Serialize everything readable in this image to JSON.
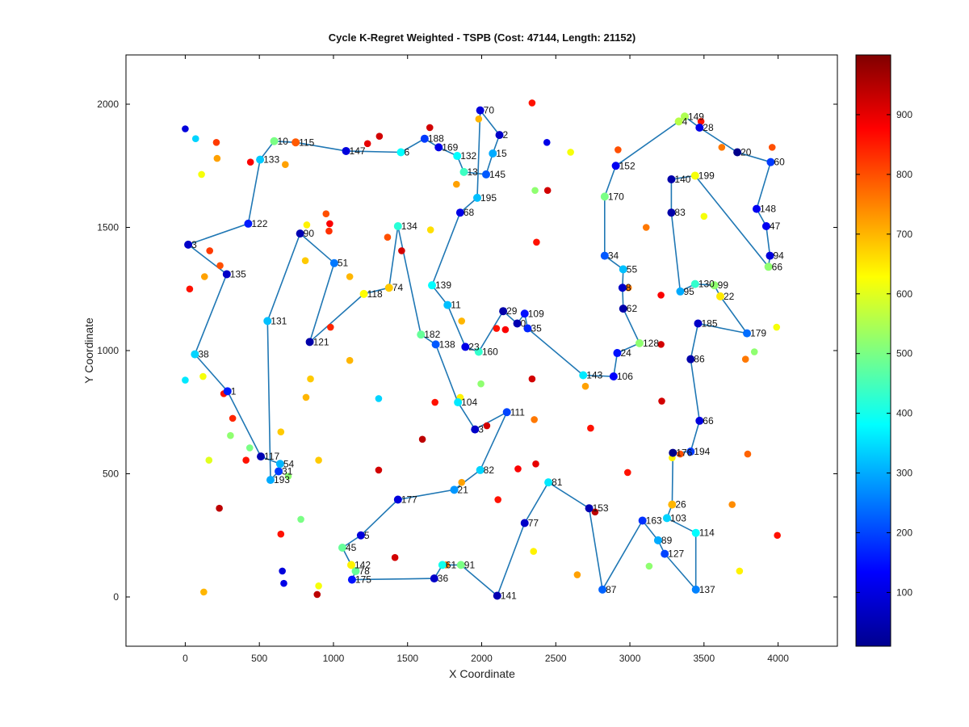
{
  "chart_data": {
    "type": "scatter",
    "title": "Cycle K-Regret Weighted - TSPB (Cost: 47144, Length: 21152)",
    "xlabel": "X Coordinate",
    "ylabel": "Y Coordinate",
    "xlim": [
      -400,
      4400
    ],
    "ylim": [
      -200,
      2200
    ],
    "xticks": [
      0,
      500,
      1000,
      1500,
      2000,
      2500,
      3000,
      3500,
      4000
    ],
    "yticks": [
      0,
      500,
      1000,
      1500,
      2000
    ],
    "grid": false,
    "legend": "none",
    "colorbar": {
      "colormap": "jet",
      "range": [
        10,
        1000
      ],
      "ticks": [
        100,
        200,
        300,
        400,
        500,
        600,
        700,
        800,
        900
      ]
    },
    "cycle_color": "#1f77b4",
    "tour_nodes": [
      {
        "id": 10,
        "x": 600,
        "y": 1850,
        "c": 500
      },
      {
        "id": 115,
        "x": 745,
        "y": 1845,
        "c": 790
      },
      {
        "id": 147,
        "x": 1085,
        "y": 1810,
        "c": 100
      },
      {
        "id": 6,
        "x": 1455,
        "y": 1805,
        "c": 380
      },
      {
        "id": 188,
        "x": 1615,
        "y": 1860,
        "c": 190
      },
      {
        "id": 169,
        "x": 1710,
        "y": 1825,
        "c": 110
      },
      {
        "id": 132,
        "x": 1835,
        "y": 1790,
        "c": 380
      },
      {
        "id": 13,
        "x": 1880,
        "y": 1725,
        "c": 440
      },
      {
        "id": 145,
        "x": 2030,
        "y": 1715,
        "c": 220
      },
      {
        "id": 15,
        "x": 2075,
        "y": 1800,
        "c": 300
      },
      {
        "id": 2,
        "x": 2120,
        "y": 1875,
        "c": 80
      },
      {
        "id": 70,
        "x": 1990,
        "y": 1975,
        "c": 100
      },
      {
        "id": 195,
        "x": 1970,
        "y": 1620,
        "c": 320
      },
      {
        "id": 68,
        "x": 1855,
        "y": 1560,
        "c": 110
      },
      {
        "id": 139,
        "x": 1665,
        "y": 1265,
        "c": 380
      },
      {
        "id": 11,
        "x": 1770,
        "y": 1185,
        "c": 320
      },
      {
        "id": 23,
        "x": 1890,
        "y": 1015,
        "c": 110
      },
      {
        "id": 160,
        "x": 1980,
        "y": 995,
        "c": 430
      },
      {
        "id": 29,
        "x": 2145,
        "y": 1160,
        "c": 50
      },
      {
        "id": 0,
        "x": 2240,
        "y": 1110,
        "c": 60
      },
      {
        "id": 109,
        "x": 2290,
        "y": 1150,
        "c": 150
      },
      {
        "id": 35,
        "x": 2310,
        "y": 1090,
        "c": 170
      },
      {
        "id": 143,
        "x": 2685,
        "y": 900,
        "c": 360
      },
      {
        "id": 106,
        "x": 2890,
        "y": 895,
        "c": 130
      },
      {
        "id": 24,
        "x": 2915,
        "y": 990,
        "c": 150
      },
      {
        "id": 128,
        "x": 3065,
        "y": 1030,
        "c": 520
      },
      {
        "id": 62,
        "x": 2955,
        "y": 1170,
        "c": 50
      },
      {
        "id": 8,
        "x": 2950,
        "y": 1255,
        "c": 80
      },
      {
        "id": 55,
        "x": 2955,
        "y": 1330,
        "c": 320
      },
      {
        "id": 34,
        "x": 2830,
        "y": 1385,
        "c": 220
      },
      {
        "id": 170,
        "x": 2830,
        "y": 1625,
        "c": 500
      },
      {
        "id": 152,
        "x": 2905,
        "y": 1750,
        "c": 120
      },
      {
        "id": 4,
        "x": 3330,
        "y": 1930,
        "c": 560
      },
      {
        "id": 149,
        "x": 3370,
        "y": 1950,
        "c": 550
      },
      {
        "id": 28,
        "x": 3470,
        "y": 1905,
        "c": 110
      },
      {
        "id": 20,
        "x": 3725,
        "y": 1805,
        "c": 20
      },
      {
        "id": 60,
        "x": 3950,
        "y": 1765,
        "c": 190
      },
      {
        "id": 148,
        "x": 3855,
        "y": 1575,
        "c": 120
      },
      {
        "id": 47,
        "x": 3920,
        "y": 1505,
        "c": 120
      },
      {
        "id": 94,
        "x": 3945,
        "y": 1385,
        "c": 100
      },
      {
        "id": 66,
        "x": 3935,
        "y": 1340,
        "c": 520
      },
      {
        "id": 199,
        "x": 3440,
        "y": 1710,
        "c": 620
      },
      {
        "id": 140,
        "x": 3280,
        "y": 1695,
        "c": 50
      },
      {
        "id": 83,
        "x": 3280,
        "y": 1560,
        "c": 50
      },
      {
        "id": 95,
        "x": 3340,
        "y": 1240,
        "c": 300
      },
      {
        "id": 130,
        "x": 3440,
        "y": 1270,
        "c": 430
      },
      {
        "id": 99,
        "x": 3570,
        "y": 1265,
        "c": 520
      },
      {
        "id": 22,
        "x": 3610,
        "y": 1220,
        "c": 650
      },
      {
        "id": 179,
        "x": 3790,
        "y": 1070,
        "c": 240
      },
      {
        "id": 185,
        "x": 3460,
        "y": 1110,
        "c": 80
      },
      {
        "id": 86,
        "x": 3410,
        "y": 965,
        "c": 50
      },
      {
        "id": 66,
        "x": 3470,
        "y": 715,
        "c": 100
      },
      {
        "id": 194,
        "x": 3410,
        "y": 590,
        "c": 190
      },
      {
        "id": 176,
        "x": 3290,
        "y": 585,
        "c": 20
      },
      {
        "id": 26,
        "x": 3285,
        "y": 375,
        "c": 700
      },
      {
        "id": 103,
        "x": 3250,
        "y": 320,
        "c": 340
      },
      {
        "id": 114,
        "x": 3445,
        "y": 260,
        "c": 380
      },
      {
        "id": 137,
        "x": 3445,
        "y": 30,
        "c": 260
      },
      {
        "id": 127,
        "x": 3235,
        "y": 175,
        "c": 200
      },
      {
        "id": 89,
        "x": 3190,
        "y": 230,
        "c": 300
      },
      {
        "id": 163,
        "x": 3085,
        "y": 310,
        "c": 180
      },
      {
        "id": 87,
        "x": 2815,
        "y": 30,
        "c": 230
      },
      {
        "id": 153,
        "x": 2725,
        "y": 360,
        "c": 60
      },
      {
        "id": 81,
        "x": 2450,
        "y": 465,
        "c": 360
      },
      {
        "id": 77,
        "x": 2290,
        "y": 300,
        "c": 80
      },
      {
        "id": 141,
        "x": 2105,
        "y": 5,
        "c": 60
      },
      {
        "id": 91,
        "x": 1860,
        "y": 130,
        "c": 500
      },
      {
        "id": 61,
        "x": 1735,
        "y": 130,
        "c": 400
      },
      {
        "id": 36,
        "x": 1680,
        "y": 75,
        "c": 80
      },
      {
        "id": 175,
        "x": 1125,
        "y": 70,
        "c": 150
      },
      {
        "id": 78,
        "x": 1150,
        "y": 105,
        "c": 480
      },
      {
        "id": 142,
        "x": 1120,
        "y": 130,
        "c": 640
      },
      {
        "id": 45,
        "x": 1060,
        "y": 200,
        "c": 480
      },
      {
        "id": 5,
        "x": 1185,
        "y": 250,
        "c": 100
      },
      {
        "id": 177,
        "x": 1435,
        "y": 395,
        "c": 100
      },
      {
        "id": 21,
        "x": 1815,
        "y": 435,
        "c": 280
      },
      {
        "id": 82,
        "x": 1990,
        "y": 515,
        "c": 340
      },
      {
        "id": 111,
        "x": 2170,
        "y": 750,
        "c": 200
      },
      {
        "id": 3,
        "x": 1955,
        "y": 680,
        "c": 80
      },
      {
        "id": 104,
        "x": 1840,
        "y": 790,
        "c": 360
      },
      {
        "id": 138,
        "x": 1690,
        "y": 1025,
        "c": 220
      },
      {
        "id": 182,
        "x": 1590,
        "y": 1065,
        "c": 480
      },
      {
        "id": 134,
        "x": 1435,
        "y": 1505,
        "c": 420
      },
      {
        "id": 74,
        "x": 1375,
        "y": 1255,
        "c": 680
      },
      {
        "id": 118,
        "x": 1205,
        "y": 1230,
        "c": 630
      },
      {
        "id": 121,
        "x": 840,
        "y": 1035,
        "c": 50
      },
      {
        "id": 51,
        "x": 1005,
        "y": 1355,
        "c": 250
      },
      {
        "id": 90,
        "x": 775,
        "y": 1475,
        "c": 60
      },
      {
        "id": 131,
        "x": 555,
        "y": 1120,
        "c": 320
      },
      {
        "id": 193,
        "x": 575,
        "y": 475,
        "c": 300
      },
      {
        "id": 31,
        "x": 630,
        "y": 510,
        "c": 190
      },
      {
        "id": 54,
        "x": 640,
        "y": 540,
        "c": 310
      },
      {
        "id": 117,
        "x": 510,
        "y": 570,
        "c": 60
      },
      {
        "id": 1,
        "x": 285,
        "y": 835,
        "c": 160
      },
      {
        "id": 38,
        "x": 65,
        "y": 985,
        "c": 340
      },
      {
        "id": 135,
        "x": 280,
        "y": 1310,
        "c": 80
      },
      {
        "id": 3,
        "x": 20,
        "y": 1430,
        "c": 80
      },
      {
        "id": 122,
        "x": 425,
        "y": 1515,
        "c": 160
      },
      {
        "id": 133,
        "x": 505,
        "y": 1775,
        "c": 330
      }
    ],
    "other_points": [
      {
        "x": 0,
        "y": 1900,
        "c": 100
      },
      {
        "x": 70,
        "y": 1860,
        "c": 340
      },
      {
        "x": 210,
        "y": 1845,
        "c": 820
      },
      {
        "x": 215,
        "y": 1780,
        "c": 720
      },
      {
        "x": 110,
        "y": 1715,
        "c": 620
      },
      {
        "x": 440,
        "y": 1765,
        "c": 880
      },
      {
        "x": 675,
        "y": 1755,
        "c": 720
      },
      {
        "x": 1230,
        "y": 1840,
        "c": 900
      },
      {
        "x": 1310,
        "y": 1870,
        "c": 920
      },
      {
        "x": 1650,
        "y": 1905,
        "c": 920
      },
      {
        "x": 1980,
        "y": 1940,
        "c": 700
      },
      {
        "x": 2340,
        "y": 2005,
        "c": 860
      },
      {
        "x": 2440,
        "y": 1845,
        "c": 110
      },
      {
        "x": 2600,
        "y": 1805,
        "c": 620
      },
      {
        "x": 2920,
        "y": 1815,
        "c": 800
      },
      {
        "x": 3480,
        "y": 1930,
        "c": 860
      },
      {
        "x": 3620,
        "y": 1825,
        "c": 760
      },
      {
        "x": 3960,
        "y": 1825,
        "c": 800
      },
      {
        "x": 1830,
        "y": 1675,
        "c": 720
      },
      {
        "x": 2360,
        "y": 1650,
        "c": 520
      },
      {
        "x": 2445,
        "y": 1650,
        "c": 920
      },
      {
        "x": 3500,
        "y": 1545,
        "c": 620
      },
      {
        "x": 3110,
        "y": 1500,
        "c": 760
      },
      {
        "x": 820,
        "y": 1510,
        "c": 640
      },
      {
        "x": 950,
        "y": 1555,
        "c": 800
      },
      {
        "x": 975,
        "y": 1515,
        "c": 880
      },
      {
        "x": 970,
        "y": 1485,
        "c": 830
      },
      {
        "x": 1365,
        "y": 1460,
        "c": 800
      },
      {
        "x": 1655,
        "y": 1490,
        "c": 660
      },
      {
        "x": 2370,
        "y": 1440,
        "c": 860
      },
      {
        "x": 1460,
        "y": 1405,
        "c": 920
      },
      {
        "x": 165,
        "y": 1405,
        "c": 820
      },
      {
        "x": 235,
        "y": 1345,
        "c": 800
      },
      {
        "x": 130,
        "y": 1300,
        "c": 720
      },
      {
        "x": 810,
        "y": 1365,
        "c": 680
      },
      {
        "x": 1110,
        "y": 1300,
        "c": 700
      },
      {
        "x": 30,
        "y": 1250,
        "c": 860
      },
      {
        "x": 2990,
        "y": 1255,
        "c": 760
      },
      {
        "x": 3210,
        "y": 1225,
        "c": 880
      },
      {
        "x": 3990,
        "y": 1095,
        "c": 620
      },
      {
        "x": 1865,
        "y": 1120,
        "c": 700
      },
      {
        "x": 980,
        "y": 1095,
        "c": 840
      },
      {
        "x": 2100,
        "y": 1090,
        "c": 860
      },
      {
        "x": 2160,
        "y": 1085,
        "c": 880
      },
      {
        "x": 3210,
        "y": 1025,
        "c": 920
      },
      {
        "x": 3840,
        "y": 995,
        "c": 520
      },
      {
        "x": 3780,
        "y": 965,
        "c": 760
      },
      {
        "x": 1110,
        "y": 960,
        "c": 700
      },
      {
        "x": 0,
        "y": 880,
        "c": 360
      },
      {
        "x": 120,
        "y": 895,
        "c": 620
      },
      {
        "x": 845,
        "y": 885,
        "c": 680
      },
      {
        "x": 2340,
        "y": 885,
        "c": 920
      },
      {
        "x": 1995,
        "y": 865,
        "c": 520
      },
      {
        "x": 2700,
        "y": 855,
        "c": 720
      },
      {
        "x": 260,
        "y": 825,
        "c": 860
      },
      {
        "x": 1305,
        "y": 805,
        "c": 340
      },
      {
        "x": 815,
        "y": 810,
        "c": 700
      },
      {
        "x": 1855,
        "y": 810,
        "c": 640
      },
      {
        "x": 1685,
        "y": 790,
        "c": 860
      },
      {
        "x": 3215,
        "y": 795,
        "c": 920
      },
      {
        "x": 320,
        "y": 725,
        "c": 840
      },
      {
        "x": 2355,
        "y": 720,
        "c": 760
      },
      {
        "x": 2035,
        "y": 695,
        "c": 920
      },
      {
        "x": 2735,
        "y": 685,
        "c": 860
      },
      {
        "x": 645,
        "y": 670,
        "c": 680
      },
      {
        "x": 305,
        "y": 655,
        "c": 520
      },
      {
        "x": 1600,
        "y": 640,
        "c": 940
      },
      {
        "x": 435,
        "y": 605,
        "c": 500
      },
      {
        "x": 3340,
        "y": 580,
        "c": 800
      },
      {
        "x": 3285,
        "y": 565,
        "c": 640
      },
      {
        "x": 3795,
        "y": 580,
        "c": 780
      },
      {
        "x": 160,
        "y": 555,
        "c": 600
      },
      {
        "x": 410,
        "y": 555,
        "c": 860
      },
      {
        "x": 900,
        "y": 555,
        "c": 680
      },
      {
        "x": 2365,
        "y": 540,
        "c": 900
      },
      {
        "x": 1305,
        "y": 515,
        "c": 920
      },
      {
        "x": 2245,
        "y": 520,
        "c": 880
      },
      {
        "x": 2985,
        "y": 505,
        "c": 860
      },
      {
        "x": 695,
        "y": 490,
        "c": 520
      },
      {
        "x": 1865,
        "y": 465,
        "c": 720
      },
      {
        "x": 2110,
        "y": 395,
        "c": 860
      },
      {
        "x": 3690,
        "y": 375,
        "c": 740
      },
      {
        "x": 230,
        "y": 360,
        "c": 940
      },
      {
        "x": 2765,
        "y": 345,
        "c": 940
      },
      {
        "x": 780,
        "y": 315,
        "c": 500
      },
      {
        "x": 645,
        "y": 255,
        "c": 860
      },
      {
        "x": 3995,
        "y": 250,
        "c": 860
      },
      {
        "x": 2350,
        "y": 185,
        "c": 640
      },
      {
        "x": 1415,
        "y": 160,
        "c": 920
      },
      {
        "x": 3130,
        "y": 125,
        "c": 520
      },
      {
        "x": 3740,
        "y": 105,
        "c": 640
      },
      {
        "x": 1760,
        "y": 130,
        "c": 760
      },
      {
        "x": 655,
        "y": 105,
        "c": 100
      },
      {
        "x": 2645,
        "y": 90,
        "c": 720
      },
      {
        "x": 665,
        "y": 55,
        "c": 110
      },
      {
        "x": 900,
        "y": 45,
        "c": 620
      },
      {
        "x": 125,
        "y": 20,
        "c": 700
      },
      {
        "x": 890,
        "y": 10,
        "c": 940
      }
    ]
  }
}
